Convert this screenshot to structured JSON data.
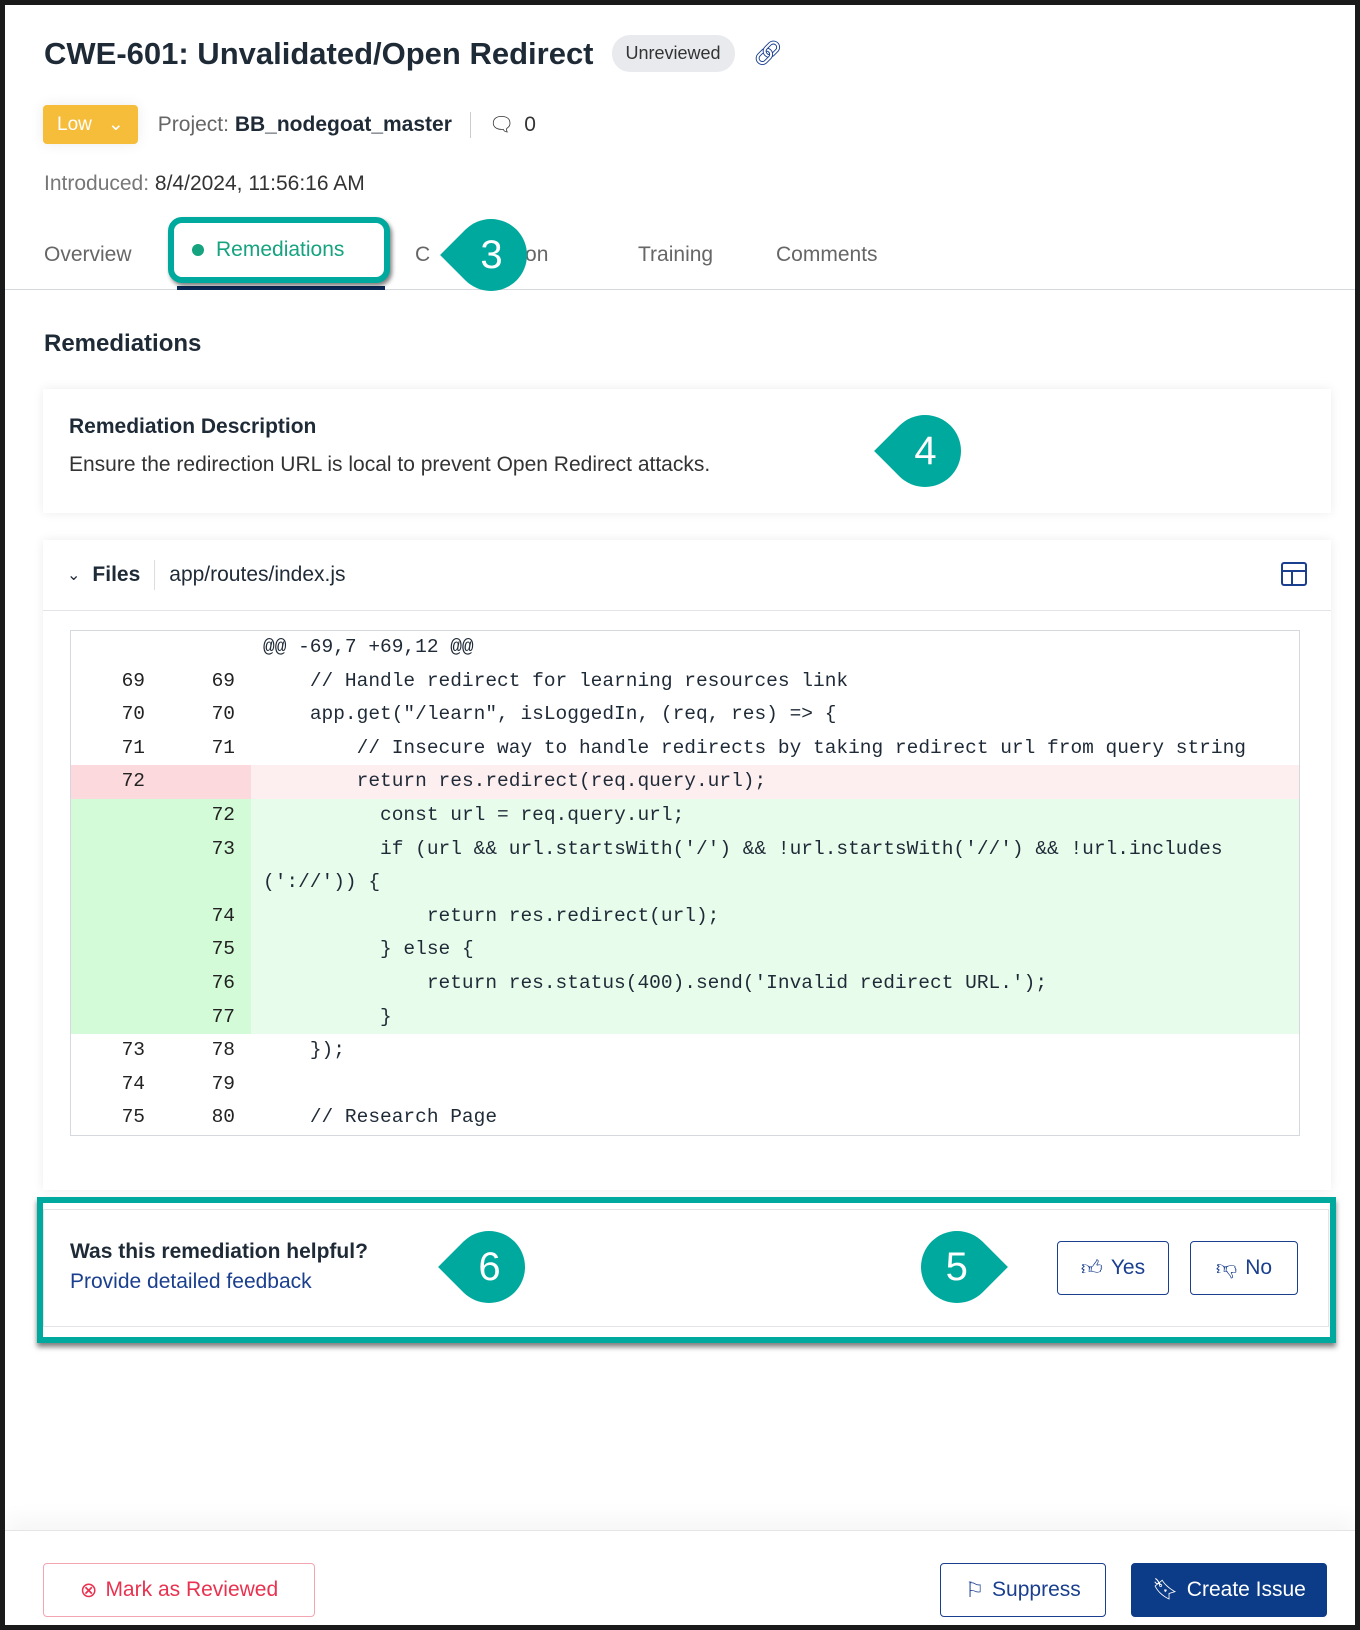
{
  "header": {
    "title": "CWE-601: Unvalidated/Open Redirect",
    "status_badge": "Unreviewed",
    "severity": "Low",
    "project_label": "Project:",
    "project_name": "BB_nodegoat_master",
    "comment_count": "0",
    "introduced_label": "Introduced:",
    "introduced_value": "8/4/2024, 11:56:16 AM"
  },
  "tabs": [
    {
      "label": "Overview"
    },
    {
      "label": "Remediations",
      "active": true
    },
    {
      "label": "CWE Description"
    },
    {
      "label": "Training"
    },
    {
      "label": "Comments"
    }
  ],
  "tab_partial": {
    "left": "C​",
    "right": "iption"
  },
  "callouts": {
    "c3": "3",
    "c4": "4",
    "c5": "5",
    "c6": "6"
  },
  "section_title": "Remediations",
  "remediation": {
    "title": "Remediation Description",
    "text": "Ensure the redirection URL is local to prevent Open Redirect attacks."
  },
  "files": {
    "label": "Files",
    "path": "app/routes/index.js",
    "diff": [
      {
        "old": "",
        "new": "",
        "text": "@@ -69,7 +69,12 @@",
        "type": "hunk"
      },
      {
        "old": "69",
        "new": "69",
        "text": "    // Handle redirect for learning resources link",
        "type": "ctx"
      },
      {
        "old": "70",
        "new": "70",
        "text": "    app.get(\"/learn\", isLoggedIn, (req, res) => {",
        "type": "ctx"
      },
      {
        "old": "71",
        "new": "71",
        "text": "        // Insecure way to handle redirects by taking redirect url from query string",
        "type": "ctx"
      },
      {
        "old": "72",
        "new": "",
        "text": "        return res.redirect(req.query.url);",
        "type": "del"
      },
      {
        "old": "",
        "new": "72",
        "text": "          const url = req.query.url;",
        "type": "add"
      },
      {
        "old": "",
        "new": "73",
        "text": "          if (url && url.startsWith('/') && !url.startsWith('//') && !url.includes('://')) {",
        "type": "add"
      },
      {
        "old": "",
        "new": "74",
        "text": "              return res.redirect(url);",
        "type": "add"
      },
      {
        "old": "",
        "new": "75",
        "text": "          } else {",
        "type": "add"
      },
      {
        "old": "",
        "new": "76",
        "text": "              return res.status(400).send('Invalid redirect URL.');",
        "type": "add"
      },
      {
        "old": "",
        "new": "77",
        "text": "          }",
        "type": "add"
      },
      {
        "old": "73",
        "new": "78",
        "text": "    });",
        "type": "ctx"
      },
      {
        "old": "74",
        "new": "79",
        "text": "",
        "type": "ctx"
      },
      {
        "old": "75",
        "new": "80",
        "text": "    // Research Page",
        "type": "ctx"
      }
    ]
  },
  "feedback": {
    "question": "Was this remediation helpful?",
    "link": "Provide detailed feedback",
    "yes": "Yes",
    "no": "No"
  },
  "footer": {
    "mark_reviewed": "Mark as Reviewed",
    "suppress": "Suppress",
    "create_issue": "Create Issue"
  },
  "colors": {
    "accent": "#16a37f",
    "primary": "#0c3b87",
    "danger": "#e8324f",
    "severity_low": "#f6bd3a",
    "callout": "#00a99d"
  }
}
